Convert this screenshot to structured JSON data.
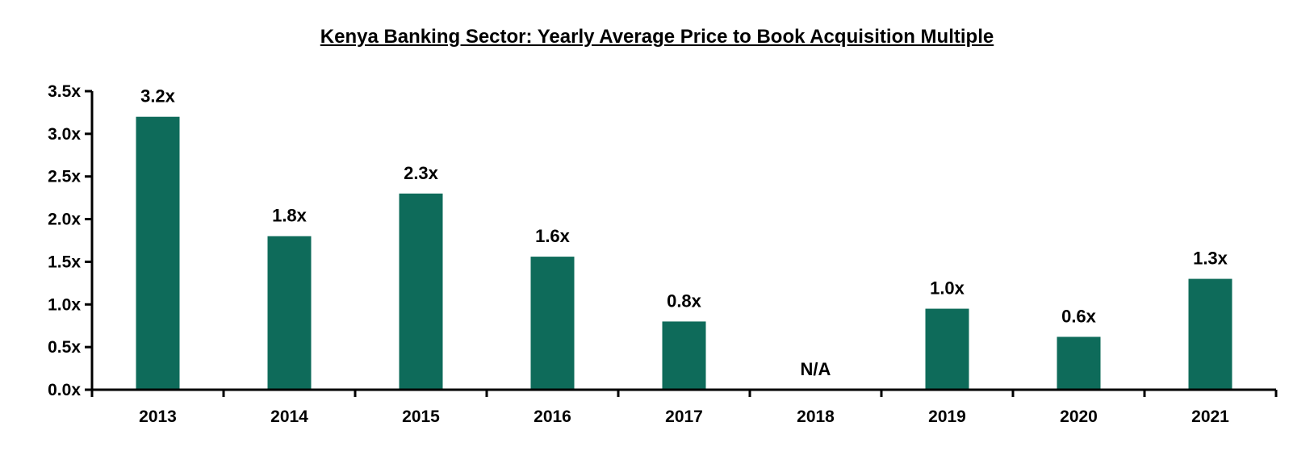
{
  "chart_data": {
    "type": "bar",
    "title": "Kenya Banking Sector: Yearly Average Price to Book Acquisition Multiple",
    "categories": [
      "2013",
      "2014",
      "2015",
      "2016",
      "2017",
      "2018",
      "2019",
      "2020",
      "2021"
    ],
    "values": [
      3.2,
      1.8,
      2.3,
      1.56,
      0.8,
      null,
      0.95,
      0.62,
      1.3
    ],
    "data_labels": [
      "3.2x",
      "1.8x",
      "2.3x",
      "1.6x",
      "0.8x",
      "N/A",
      "1.0x",
      "0.6x",
      "1.3x"
    ],
    "yticks": [
      "0.0x",
      "0.5x",
      "1.0x",
      "1.5x",
      "2.0x",
      "2.5x",
      "3.0x",
      "3.5x"
    ],
    "ylim": [
      0,
      3.5
    ],
    "xlabel": "",
    "ylabel": "",
    "grid": false,
    "bar_color": "#0e6b5a"
  }
}
